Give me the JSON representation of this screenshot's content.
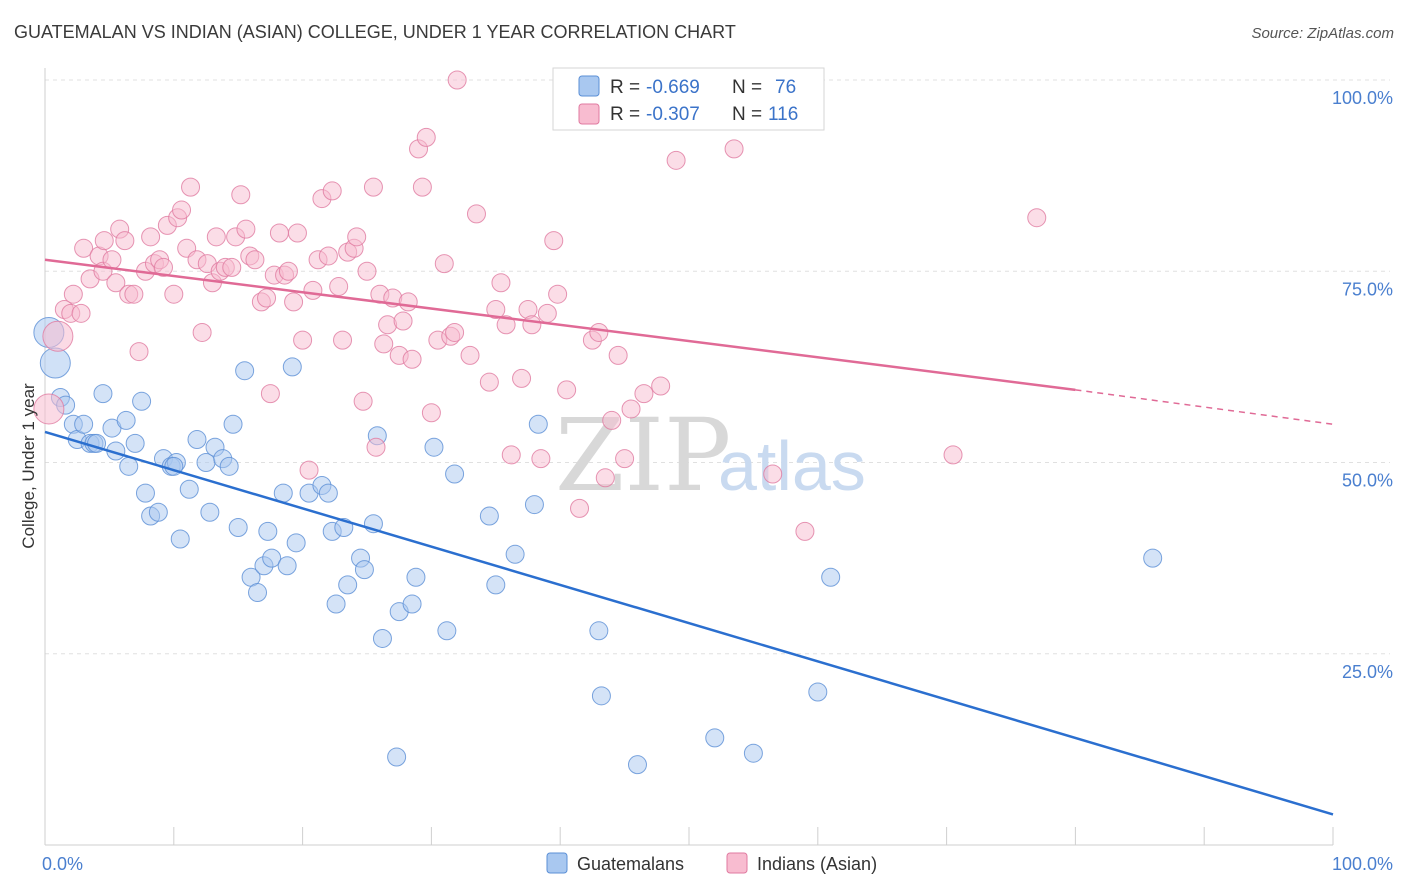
{
  "header": {
    "title": "GUATEMALAN VS INDIAN (ASIAN) COLLEGE, UNDER 1 YEAR CORRELATION CHART",
    "source": "Source: ZipAtlas.com"
  },
  "watermark": {
    "zip": "ZIP",
    "atlas": "atlas"
  },
  "legend": {
    "rows": [
      {
        "r_label": "R =",
        "r_value": "-0.669",
        "n_label": "N =",
        "n_value": "76",
        "color": "#a9c8f0",
        "stroke": "#5b8fd6"
      },
      {
        "r_label": "R =",
        "r_value": "-0.307",
        "n_label": "N =",
        "n_value": "116",
        "color": "#f8bcd0",
        "stroke": "#e07aa0"
      }
    ]
  },
  "bottom_legend": [
    {
      "label": "Guatemalans",
      "color": "#a9c8f0",
      "stroke": "#5b8fd6"
    },
    {
      "label": "Indians (Asian)",
      "color": "#f8bcd0",
      "stroke": "#e07aa0"
    }
  ],
  "chart_data": {
    "type": "scatter",
    "title": "GUATEMALAN VS INDIAN (ASIAN) COLLEGE, UNDER 1 YEAR CORRELATION CHART",
    "xlabel": "",
    "ylabel": "College, Under 1 year",
    "xlim": [
      0,
      100
    ],
    "ylim": [
      0,
      100
    ],
    "x_tick_labels": [
      "0.0%",
      "100.0%"
    ],
    "y_ticks": [
      25,
      50,
      75,
      100
    ],
    "y_tick_labels": [
      "25.0%",
      "50.0%",
      "75.0%",
      "100.0%"
    ],
    "grid": true,
    "legend_position": "top-center",
    "series": [
      {
        "name": "Guatemalans",
        "color": "#a9c8f0",
        "stroke": "#5b8fd6",
        "line_color": "#2b6fcf",
        "trend": {
          "x": [
            0,
            100
          ],
          "y": [
            54.0,
            4.0
          ]
        },
        "points": [
          [
            0.3,
            67.0
          ],
          [
            0.8,
            63.0
          ],
          [
            1.2,
            58.5
          ],
          [
            1.6,
            57.5
          ],
          [
            2.2,
            55.0
          ],
          [
            2.5,
            53.0
          ],
          [
            3.0,
            55.0
          ],
          [
            3.5,
            52.5
          ],
          [
            3.8,
            52.5
          ],
          [
            4.5,
            59.0
          ],
          [
            5.2,
            54.5
          ],
          [
            5.5,
            51.5
          ],
          [
            6.3,
            55.5
          ],
          [
            6.5,
            49.5
          ],
          [
            7.0,
            52.5
          ],
          [
            7.5,
            58.0
          ],
          [
            7.8,
            46.0
          ],
          [
            8.2,
            43.0
          ],
          [
            8.8,
            43.5
          ],
          [
            9.2,
            50.5
          ],
          [
            9.8,
            49.5
          ],
          [
            10.2,
            50.0
          ],
          [
            10.5,
            40.0
          ],
          [
            11.2,
            46.5
          ],
          [
            11.8,
            53.0
          ],
          [
            12.5,
            50.0
          ],
          [
            12.8,
            43.5
          ],
          [
            13.2,
            52.0
          ],
          [
            13.8,
            50.5
          ],
          [
            14.3,
            49.5
          ],
          [
            14.6,
            55.0
          ],
          [
            15.0,
            41.5
          ],
          [
            15.5,
            62.0
          ],
          [
            16.0,
            35.0
          ],
          [
            16.5,
            33.0
          ],
          [
            17.0,
            36.5
          ],
          [
            17.3,
            41.0
          ],
          [
            17.6,
            37.5
          ],
          [
            18.5,
            46.0
          ],
          [
            18.8,
            36.5
          ],
          [
            19.2,
            62.5
          ],
          [
            19.5,
            39.5
          ],
          [
            20.5,
            46.0
          ],
          [
            21.5,
            47.0
          ],
          [
            22.0,
            46.0
          ],
          [
            22.3,
            41.0
          ],
          [
            22.6,
            31.5
          ],
          [
            23.2,
            41.5
          ],
          [
            23.5,
            34.0
          ],
          [
            24.5,
            37.5
          ],
          [
            24.8,
            36.0
          ],
          [
            25.5,
            42.0
          ],
          [
            25.8,
            53.5
          ],
          [
            26.2,
            27.0
          ],
          [
            27.5,
            30.5
          ],
          [
            28.5,
            31.5
          ],
          [
            28.8,
            35.0
          ],
          [
            30.2,
            52.0
          ],
          [
            31.8,
            48.5
          ],
          [
            31.2,
            28.0
          ],
          [
            34.5,
            43.0
          ],
          [
            35.0,
            34.0
          ],
          [
            36.5,
            38.0
          ],
          [
            38.0,
            44.5
          ],
          [
            38.3,
            55.0
          ],
          [
            43.0,
            28.0
          ],
          [
            43.2,
            19.5
          ],
          [
            46.0,
            10.5
          ],
          [
            52.0,
            14.0
          ],
          [
            55.0,
            12.0
          ],
          [
            60.0,
            20.0
          ],
          [
            61.0,
            35.0
          ],
          [
            27.3,
            11.5
          ],
          [
            86.0,
            37.5
          ],
          [
            10.0,
            49.5
          ],
          [
            4.0,
            52.5
          ]
        ]
      },
      {
        "name": "Indians (Asian)",
        "color": "#f8bcd0",
        "stroke": "#e07aa0",
        "line_color": "#e06a96",
        "trend": {
          "x": [
            0,
            80,
            100
          ],
          "y": [
            76.5,
            59.5,
            55.0
          ]
        },
        "points": [
          [
            0.3,
            57.0
          ],
          [
            1.0,
            66.5
          ],
          [
            1.5,
            70.0
          ],
          [
            2.0,
            69.5
          ],
          [
            2.2,
            72.0
          ],
          [
            2.8,
            69.5
          ],
          [
            3.0,
            78.0
          ],
          [
            3.5,
            74.0
          ],
          [
            4.2,
            77.0
          ],
          [
            4.5,
            75.0
          ],
          [
            4.6,
            79.0
          ],
          [
            5.2,
            76.5
          ],
          [
            5.5,
            73.5
          ],
          [
            5.8,
            80.5
          ],
          [
            6.2,
            79.0
          ],
          [
            6.5,
            72.0
          ],
          [
            6.9,
            72.0
          ],
          [
            7.3,
            64.5
          ],
          [
            7.8,
            75.0
          ],
          [
            8.2,
            79.5
          ],
          [
            8.5,
            76.0
          ],
          [
            8.9,
            76.5
          ],
          [
            9.2,
            75.5
          ],
          [
            9.5,
            81.0
          ],
          [
            10.0,
            72.0
          ],
          [
            10.3,
            82.0
          ],
          [
            10.6,
            83.0
          ],
          [
            11.0,
            78.0
          ],
          [
            11.3,
            86.0
          ],
          [
            11.8,
            76.5
          ],
          [
            12.2,
            67.0
          ],
          [
            12.6,
            76.0
          ],
          [
            13.0,
            73.5
          ],
          [
            13.3,
            79.5
          ],
          [
            13.6,
            75.0
          ],
          [
            14.0,
            75.5
          ],
          [
            14.5,
            75.5
          ],
          [
            14.8,
            79.5
          ],
          [
            15.2,
            85.0
          ],
          [
            15.6,
            80.5
          ],
          [
            15.9,
            77.0
          ],
          [
            16.3,
            76.5
          ],
          [
            16.8,
            71.0
          ],
          [
            17.2,
            71.5
          ],
          [
            17.5,
            59.0
          ],
          [
            17.8,
            74.5
          ],
          [
            18.2,
            80.0
          ],
          [
            18.6,
            74.5
          ],
          [
            18.9,
            75.0
          ],
          [
            19.3,
            71.0
          ],
          [
            19.6,
            80.0
          ],
          [
            20.0,
            66.0
          ],
          [
            20.5,
            49.0
          ],
          [
            20.8,
            72.5
          ],
          [
            21.2,
            76.5
          ],
          [
            21.5,
            84.5
          ],
          [
            22.0,
            77.0
          ],
          [
            22.3,
            85.5
          ],
          [
            22.8,
            73.0
          ],
          [
            23.1,
            66.0
          ],
          [
            23.5,
            77.5
          ],
          [
            24.0,
            78.0
          ],
          [
            24.2,
            79.5
          ],
          [
            24.7,
            58.0
          ],
          [
            25.0,
            75.0
          ],
          [
            25.5,
            86.0
          ],
          [
            25.7,
            52.0
          ],
          [
            26.0,
            72.0
          ],
          [
            26.3,
            65.5
          ],
          [
            26.6,
            68.0
          ],
          [
            27.0,
            71.5
          ],
          [
            27.5,
            64.0
          ],
          [
            27.8,
            68.5
          ],
          [
            28.2,
            71.0
          ],
          [
            28.5,
            63.5
          ],
          [
            29.0,
            91.0
          ],
          [
            29.3,
            86.0
          ],
          [
            29.6,
            92.5
          ],
          [
            30.0,
            56.5
          ],
          [
            30.5,
            66.0
          ],
          [
            31.0,
            76.0
          ],
          [
            31.5,
            66.5
          ],
          [
            31.8,
            67.0
          ],
          [
            32.0,
            100.0
          ],
          [
            33.0,
            64.0
          ],
          [
            33.5,
            82.5
          ],
          [
            34.5,
            60.5
          ],
          [
            35.0,
            70.0
          ],
          [
            35.4,
            73.5
          ],
          [
            35.8,
            68.0
          ],
          [
            36.2,
            51.0
          ],
          [
            37.0,
            61.0
          ],
          [
            37.5,
            70.0
          ],
          [
            37.8,
            68.0
          ],
          [
            38.5,
            50.5
          ],
          [
            39.0,
            69.5
          ],
          [
            39.5,
            79.0
          ],
          [
            39.8,
            72.0
          ],
          [
            40.5,
            59.5
          ],
          [
            41.5,
            44.0
          ],
          [
            42.5,
            66.0
          ],
          [
            43.0,
            67.0
          ],
          [
            43.5,
            48.0
          ],
          [
            44.0,
            55.5
          ],
          [
            44.5,
            64.0
          ],
          [
            45.0,
            50.5
          ],
          [
            45.5,
            57.0
          ],
          [
            46.5,
            59.0
          ],
          [
            47.0,
            97.0
          ],
          [
            47.8,
            60.0
          ],
          [
            49.0,
            89.5
          ],
          [
            53.5,
            91.0
          ],
          [
            56.5,
            48.5
          ],
          [
            59.0,
            41.0
          ],
          [
            70.5,
            51.0
          ],
          [
            77.0,
            82.0
          ]
        ]
      }
    ]
  }
}
